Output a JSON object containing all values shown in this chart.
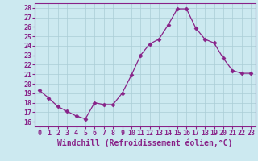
{
  "x": [
    0,
    1,
    2,
    3,
    4,
    5,
    6,
    7,
    8,
    9,
    10,
    11,
    12,
    13,
    14,
    15,
    16,
    17,
    18,
    19,
    20,
    21,
    22,
    23
  ],
  "y": [
    19.3,
    18.5,
    17.6,
    17.1,
    16.6,
    16.3,
    18.0,
    17.8,
    17.8,
    19.0,
    20.9,
    23.0,
    24.2,
    24.7,
    26.2,
    27.9,
    27.9,
    25.9,
    24.7,
    24.3,
    22.7,
    21.4,
    21.1,
    21.1
  ],
  "line_color": "#882288",
  "marker": "D",
  "markersize": 2.5,
  "linewidth": 0.9,
  "xlabel": "Windchill (Refroidissement éolien,°C)",
  "xlabel_fontsize": 7,
  "ylim": [
    15.5,
    28.5
  ],
  "xlim": [
    -0.5,
    23.5
  ],
  "yticks": [
    16,
    17,
    18,
    19,
    20,
    21,
    22,
    23,
    24,
    25,
    26,
    27,
    28
  ],
  "xticks": [
    0,
    1,
    2,
    3,
    4,
    5,
    6,
    7,
    8,
    9,
    10,
    11,
    12,
    13,
    14,
    15,
    16,
    17,
    18,
    19,
    20,
    21,
    22,
    23
  ],
  "tick_fontsize": 6,
  "bg_color": "#cce9f0",
  "grid_color": "#aacdd6",
  "spine_color": "#882288"
}
